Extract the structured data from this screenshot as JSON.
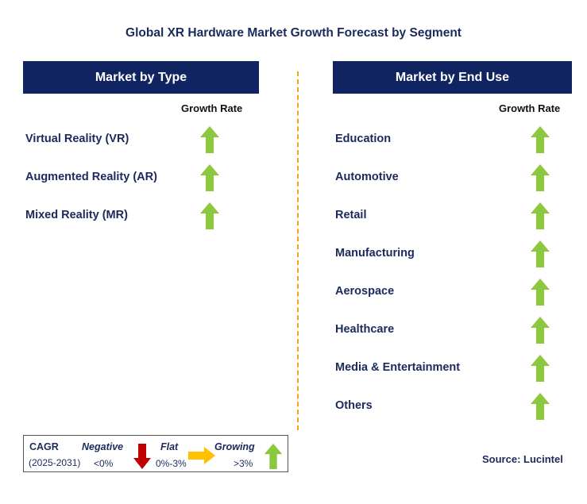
{
  "title": "Global XR Hardware Market Growth Forecast by Segment",
  "colors": {
    "header_bg": "#0f2460",
    "divider": "#f2a31a",
    "growing": "#8cc83e",
    "negative": "#c00000",
    "flat": "#ffc000"
  },
  "left_panel": {
    "header": "Market by Type",
    "growth_header": "Growth Rate",
    "rows": [
      {
        "label": "Virtual Reality (VR)",
        "trend": "growing"
      },
      {
        "label": "Augmented Reality (AR)",
        "trend": "growing"
      },
      {
        "label": "Mixed Reality (MR)",
        "trend": "growing"
      }
    ]
  },
  "right_panel": {
    "header": "Market by End Use",
    "growth_header": "Growth Rate",
    "rows": [
      {
        "label": "Education",
        "trend": "growing"
      },
      {
        "label": "Automotive",
        "trend": "growing"
      },
      {
        "label": "Retail",
        "trend": "growing"
      },
      {
        "label": "Manufacturing",
        "trend": "growing"
      },
      {
        "label": "Aerospace",
        "trend": "growing"
      },
      {
        "label": "Healthcare",
        "trend": "growing"
      },
      {
        "label": "Media & Entertainment",
        "trend": "growing"
      },
      {
        "label": "Others",
        "trend": "growing"
      }
    ]
  },
  "legend": {
    "cagr": "CAGR",
    "period": "(2025-2031)",
    "negative_label": "Negative",
    "negative_range": "<0%",
    "flat_label": "Flat",
    "flat_range": "0%-3%",
    "growing_label": "Growing",
    "growing_range": ">3%"
  },
  "source": "Source: Lucintel"
}
